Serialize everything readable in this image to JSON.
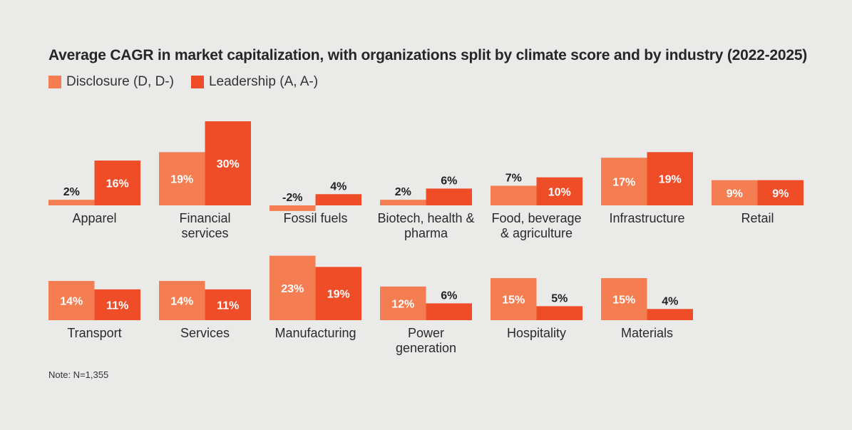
{
  "chart_data": {
    "type": "bar",
    "title": "Average CAGR in market capitalization, with organizations split by climate score and by industry (2022-2025)",
    "series": [
      {
        "name": "Disclosure (D, D-)",
        "color": "#f47e52"
      },
      {
        "name": "Leadership (A, A-)",
        "color": "#ee4d28"
      }
    ],
    "panels": [
      {
        "category": "Apparel",
        "label_lines": [
          "Apparel"
        ],
        "values": [
          2,
          16
        ],
        "value_labels": [
          "2%",
          "16%"
        ]
      },
      {
        "category": "Financial services",
        "label_lines": [
          "Financial",
          "services"
        ],
        "values": [
          19,
          30
        ],
        "value_labels": [
          "19%",
          "30%"
        ]
      },
      {
        "category": "Fossil fuels",
        "label_lines": [
          "Fossil fuels"
        ],
        "values": [
          -2,
          4
        ],
        "value_labels": [
          "-2%",
          "4%"
        ]
      },
      {
        "category": "Biotech, health & pharma",
        "label_lines": [
          "Biotech, health &",
          "pharma"
        ],
        "values": [
          2,
          6
        ],
        "value_labels": [
          "2%",
          "6%"
        ]
      },
      {
        "category": "Food, beverage & agriculture",
        "label_lines": [
          "Food, beverage",
          "& agriculture"
        ],
        "values": [
          7,
          10
        ],
        "value_labels": [
          "7%",
          "10%"
        ]
      },
      {
        "category": "Infrastructure",
        "label_lines": [
          "Infrastructure"
        ],
        "values": [
          17,
          19
        ],
        "value_labels": [
          "17%",
          "19%"
        ]
      },
      {
        "category": "Retail",
        "label_lines": [
          "Retail"
        ],
        "values": [
          9,
          9
        ],
        "value_labels": [
          "9%",
          "9%"
        ]
      },
      {
        "category": "Transport",
        "label_lines": [
          "Transport"
        ],
        "values": [
          14,
          11
        ],
        "value_labels": [
          "14%",
          "11%"
        ]
      },
      {
        "category": "Services",
        "label_lines": [
          "Services"
        ],
        "values": [
          14,
          11
        ],
        "value_labels": [
          "14%",
          "11%"
        ]
      },
      {
        "category": "Manufacturing",
        "label_lines": [
          "Manufacturing"
        ],
        "values": [
          23,
          19
        ],
        "value_labels": [
          "23%",
          "19%"
        ]
      },
      {
        "category": "Power generation",
        "label_lines": [
          "Power",
          "generation"
        ],
        "values": [
          12,
          6
        ],
        "value_labels": [
          "12%",
          "6%"
        ]
      },
      {
        "category": "Hospitality",
        "label_lines": [
          "Hospitality"
        ],
        "values": [
          15,
          5
        ],
        "value_labels": [
          "15%",
          "5%"
        ]
      },
      {
        "category": "Materials",
        "label_lines": [
          "Materials"
        ],
        "values": [
          15,
          4
        ],
        "value_labels": [
          "15%",
          "4%"
        ]
      }
    ],
    "ylabel": "",
    "xlabel": "",
    "grid": false
  },
  "note": "Note: N=1,355"
}
